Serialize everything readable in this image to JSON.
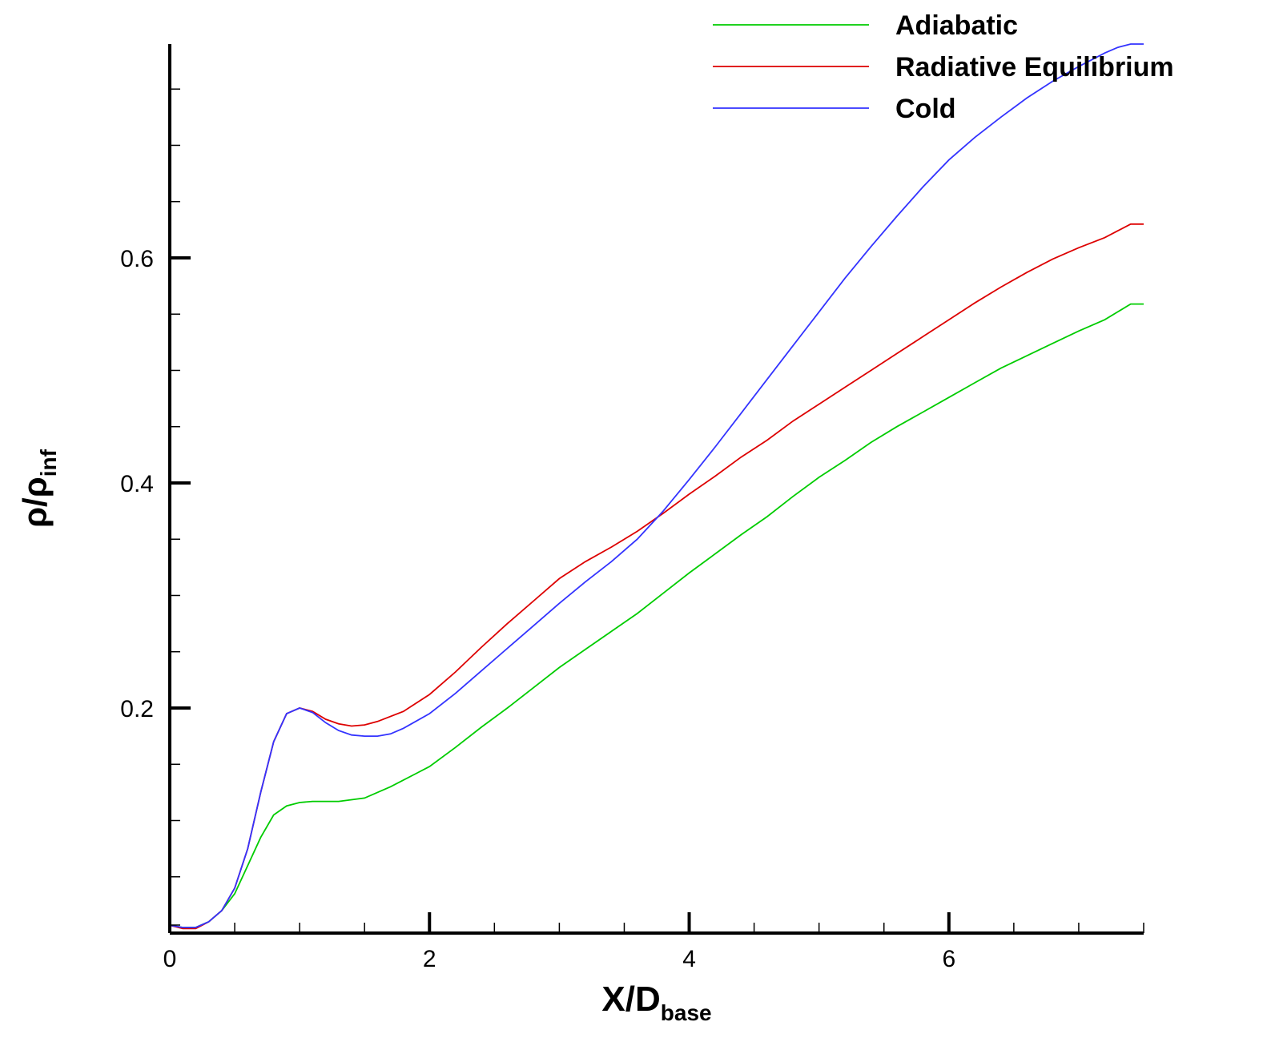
{
  "chart_data": {
    "type": "line",
    "xlabel": {
      "main": "X/D",
      "sub": "base"
    },
    "ylabel": {
      "main": "ρ/ρ",
      "sub": "inf"
    },
    "xlim": [
      0,
      7.5
    ],
    "ylim": [
      0,
      0.79
    ],
    "x_major_ticks": [
      0,
      2,
      4,
      6
    ],
    "x_tick_labels": [
      "0",
      "2",
      "4",
      "6"
    ],
    "x_minor_step": 0.5,
    "y_major_ticks": [
      0.2,
      0.4,
      0.6
    ],
    "y_tick_labels": [
      "0.2",
      "0.4",
      "0.6"
    ],
    "y_minor_step": 0.05,
    "grid": false,
    "legend_position": "top-right",
    "series": [
      {
        "name": "Adiabatic",
        "color": "#00cc00",
        "points": [
          [
            0,
            0.007
          ],
          [
            0.1,
            0.005
          ],
          [
            0.2,
            0.005
          ],
          [
            0.3,
            0.01
          ],
          [
            0.4,
            0.02
          ],
          [
            0.5,
            0.035
          ],
          [
            0.6,
            0.06
          ],
          [
            0.7,
            0.085
          ],
          [
            0.8,
            0.105
          ],
          [
            0.9,
            0.113
          ],
          [
            1.0,
            0.116
          ],
          [
            1.1,
            0.117
          ],
          [
            1.3,
            0.117
          ],
          [
            1.5,
            0.12
          ],
          [
            1.7,
            0.13
          ],
          [
            1.9,
            0.142
          ],
          [
            2.0,
            0.148
          ],
          [
            2.2,
            0.165
          ],
          [
            2.4,
            0.183
          ],
          [
            2.6,
            0.2
          ],
          [
            2.8,
            0.218
          ],
          [
            3.0,
            0.236
          ],
          [
            3.2,
            0.252
          ],
          [
            3.4,
            0.268
          ],
          [
            3.6,
            0.284
          ],
          [
            3.8,
            0.302
          ],
          [
            4.0,
            0.32
          ],
          [
            4.2,
            0.337
          ],
          [
            4.4,
            0.354
          ],
          [
            4.6,
            0.37
          ],
          [
            4.8,
            0.388
          ],
          [
            5.0,
            0.405
          ],
          [
            5.2,
            0.42
          ],
          [
            5.4,
            0.436
          ],
          [
            5.6,
            0.45
          ],
          [
            5.8,
            0.463
          ],
          [
            6.0,
            0.476
          ],
          [
            6.2,
            0.489
          ],
          [
            6.4,
            0.502
          ],
          [
            6.6,
            0.513
          ],
          [
            6.8,
            0.524
          ],
          [
            7.0,
            0.535
          ],
          [
            7.2,
            0.545
          ],
          [
            7.3,
            0.552
          ],
          [
            7.4,
            0.559
          ],
          [
            7.5,
            0.559
          ]
        ]
      },
      {
        "name": "Radiative Equilibrium",
        "color": "#dd0000",
        "points": [
          [
            0,
            0.007
          ],
          [
            0.1,
            0.004
          ],
          [
            0.2,
            0.004
          ],
          [
            0.3,
            0.01
          ],
          [
            0.4,
            0.02
          ],
          [
            0.5,
            0.04
          ],
          [
            0.6,
            0.075
          ],
          [
            0.7,
            0.125
          ],
          [
            0.8,
            0.17
          ],
          [
            0.9,
            0.195
          ],
          [
            1.0,
            0.2
          ],
          [
            1.1,
            0.197
          ],
          [
            1.2,
            0.19
          ],
          [
            1.3,
            0.186
          ],
          [
            1.4,
            0.184
          ],
          [
            1.5,
            0.185
          ],
          [
            1.6,
            0.188
          ],
          [
            1.8,
            0.197
          ],
          [
            2.0,
            0.212
          ],
          [
            2.2,
            0.232
          ],
          [
            2.4,
            0.254
          ],
          [
            2.6,
            0.275
          ],
          [
            2.8,
            0.295
          ],
          [
            3.0,
            0.315
          ],
          [
            3.2,
            0.33
          ],
          [
            3.4,
            0.343
          ],
          [
            3.6,
            0.357
          ],
          [
            3.8,
            0.373
          ],
          [
            4.0,
            0.39
          ],
          [
            4.2,
            0.406
          ],
          [
            4.4,
            0.423
          ],
          [
            4.6,
            0.438
          ],
          [
            4.8,
            0.455
          ],
          [
            5.0,
            0.47
          ],
          [
            5.2,
            0.485
          ],
          [
            5.4,
            0.5
          ],
          [
            5.6,
            0.515
          ],
          [
            5.8,
            0.53
          ],
          [
            6.0,
            0.545
          ],
          [
            6.2,
            0.56
          ],
          [
            6.4,
            0.574
          ],
          [
            6.6,
            0.587
          ],
          [
            6.8,
            0.599
          ],
          [
            7.0,
            0.609
          ],
          [
            7.2,
            0.618
          ],
          [
            7.3,
            0.624
          ],
          [
            7.4,
            0.63
          ],
          [
            7.5,
            0.63
          ]
        ]
      },
      {
        "name": "Cold",
        "color": "#3333ff",
        "points": [
          [
            0,
            0.007
          ],
          [
            0.1,
            0.005
          ],
          [
            0.2,
            0.005
          ],
          [
            0.3,
            0.01
          ],
          [
            0.4,
            0.02
          ],
          [
            0.5,
            0.04
          ],
          [
            0.6,
            0.075
          ],
          [
            0.7,
            0.125
          ],
          [
            0.8,
            0.17
          ],
          [
            0.9,
            0.195
          ],
          [
            1.0,
            0.2
          ],
          [
            1.1,
            0.196
          ],
          [
            1.2,
            0.187
          ],
          [
            1.3,
            0.18
          ],
          [
            1.4,
            0.176
          ],
          [
            1.5,
            0.175
          ],
          [
            1.6,
            0.175
          ],
          [
            1.7,
            0.177
          ],
          [
            1.8,
            0.182
          ],
          [
            2.0,
            0.195
          ],
          [
            2.2,
            0.213
          ],
          [
            2.4,
            0.233
          ],
          [
            2.6,
            0.253
          ],
          [
            2.8,
            0.273
          ],
          [
            3.0,
            0.293
          ],
          [
            3.2,
            0.312
          ],
          [
            3.4,
            0.33
          ],
          [
            3.6,
            0.35
          ],
          [
            3.8,
            0.375
          ],
          [
            4.0,
            0.403
          ],
          [
            4.2,
            0.432
          ],
          [
            4.4,
            0.462
          ],
          [
            4.6,
            0.492
          ],
          [
            4.8,
            0.522
          ],
          [
            5.0,
            0.552
          ],
          [
            5.2,
            0.582
          ],
          [
            5.4,
            0.61
          ],
          [
            5.6,
            0.637
          ],
          [
            5.8,
            0.663
          ],
          [
            6.0,
            0.687
          ],
          [
            6.2,
            0.707
          ],
          [
            6.4,
            0.725
          ],
          [
            6.6,
            0.742
          ],
          [
            6.8,
            0.757
          ],
          [
            7.0,
            0.77
          ],
          [
            7.2,
            0.782
          ],
          [
            7.3,
            0.787
          ],
          [
            7.4,
            0.79
          ],
          [
            7.5,
            0.79
          ]
        ]
      }
    ]
  }
}
